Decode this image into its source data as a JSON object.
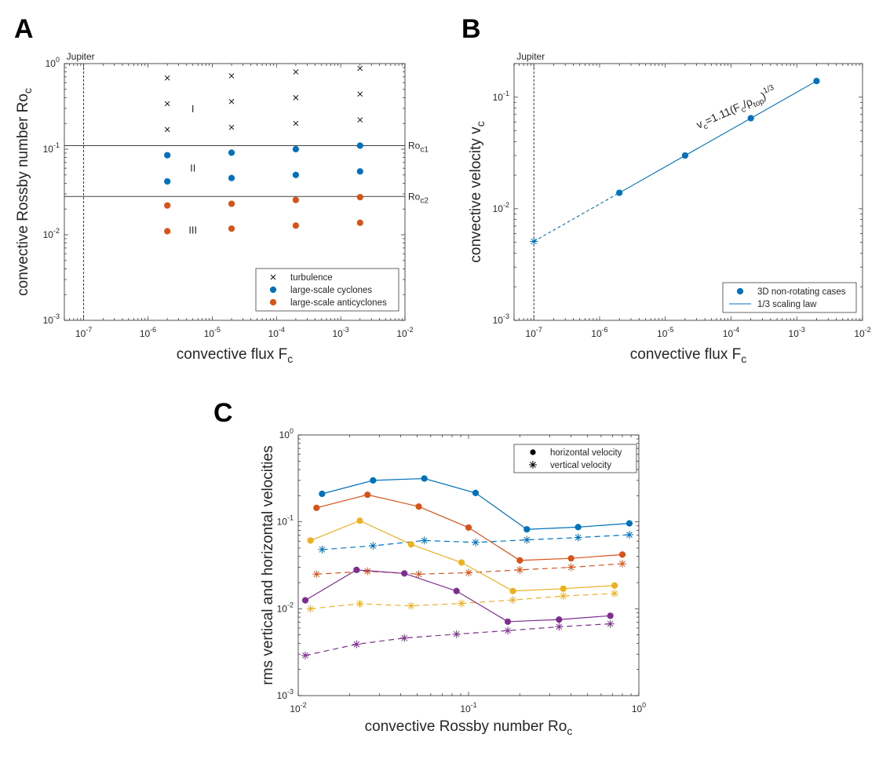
{
  "colors": {
    "blue": "#0072BD",
    "orange": "#D95319",
    "yellow": "#EDB120",
    "purple": "#7E2F8E",
    "axis": "#262626"
  },
  "chart_data": [
    {
      "panel": "A",
      "type": "scatter",
      "title": "",
      "xlabel": "convective flux F",
      "xlabel_sub": "c",
      "ylabel": "convective Rossby number Ro",
      "ylabel_sub": "c",
      "xscale": "log",
      "yscale": "log",
      "xlim": [
        5e-08,
        0.01
      ],
      "ylim": [
        0.001,
        1
      ],
      "x_tick_exponents": [
        -7,
        -6,
        -5,
        -4,
        -3,
        -2
      ],
      "y_tick_exponents": [
        -3,
        -2,
        -1,
        0
      ],
      "vline": {
        "x": 1e-07,
        "label": "Jupiter"
      },
      "hlines": [
        {
          "y": 0.11,
          "label": "Ro",
          "label_sub": "c1"
        },
        {
          "y": 0.028,
          "label": "Ro",
          "label_sub": "c2"
        }
      ],
      "regions": [
        {
          "label": "I",
          "x": 5e-06,
          "y": 0.27
        },
        {
          "label": "II",
          "x": 5e-06,
          "y": 0.055
        },
        {
          "label": "III",
          "x": 5e-06,
          "y": 0.0103
        }
      ],
      "legend": {
        "position": "bottom-right",
        "entries": [
          "turbulence",
          "large-scale cyclones",
          "large-scale anticyclones"
        ]
      },
      "series": [
        {
          "name": "turbulence",
          "marker": "x",
          "x": [
            2e-06,
            2e-06,
            2e-06,
            2e-05,
            2e-05,
            2e-05,
            0.0002,
            0.0002,
            0.0002,
            0.002,
            0.002,
            0.002
          ],
          "y": [
            0.68,
            0.34,
            0.17,
            0.72,
            0.36,
            0.18,
            0.8,
            0.4,
            0.2,
            0.88,
            0.44,
            0.22
          ]
        },
        {
          "name": "large-scale cyclones",
          "marker": "o",
          "color": "blue",
          "x": [
            2e-06,
            2e-06,
            2e-05,
            2e-05,
            0.0002,
            0.0002,
            0.002,
            0.002
          ],
          "y": [
            0.085,
            0.042,
            0.091,
            0.046,
            0.1,
            0.05,
            0.11,
            0.055
          ]
        },
        {
          "name": "large-scale anticyclones",
          "marker": "o",
          "color": "orange",
          "x": [
            2e-06,
            2e-06,
            2e-05,
            2e-05,
            0.0002,
            0.0002,
            0.002,
            0.002
          ],
          "y": [
            0.022,
            0.011,
            0.023,
            0.0118,
            0.0255,
            0.0128,
            0.0275,
            0.0138
          ]
        }
      ]
    },
    {
      "panel": "B",
      "type": "line",
      "title": "",
      "xlabel": "convective flux F",
      "xlabel_sub": "c",
      "ylabel": "convective velocity v",
      "ylabel_sub": "c",
      "xscale": "log",
      "yscale": "log",
      "xlim": [
        5e-08,
        0.01
      ],
      "ylim": [
        0.001,
        0.2
      ],
      "x_tick_exponents": [
        -7,
        -6,
        -5,
        -4,
        -3,
        -2
      ],
      "y_tick_exponents": [
        -3,
        -2,
        -1
      ],
      "vline": {
        "x": 1e-07,
        "label": "Jupiter"
      },
      "annotation": "v_c=1.11(F_c/ρ_top)^1/3",
      "legend": {
        "position": "bottom-right",
        "entries": [
          "3D non-rotating cases",
          "1/3 scaling law"
        ]
      },
      "series": [
        {
          "name": "3D non-rotating cases",
          "marker": "o",
          "color": "blue",
          "x": [
            2e-06,
            2e-05,
            0.0002,
            0.002
          ],
          "y": [
            0.0139,
            0.03,
            0.0648,
            0.1396
          ]
        },
        {
          "name": "1/3 scaling law",
          "color": "blue",
          "style": "solid",
          "x": [
            2e-06,
            0.002
          ],
          "y": [
            0.0139,
            0.1396
          ]
        },
        {
          "name": "extrapolation",
          "color": "blue",
          "style": "dashed",
          "x": [
            1e-07,
            2e-06
          ],
          "y": [
            0.0051,
            0.0139
          ]
        },
        {
          "name": "Jupiter estimate",
          "marker": "*",
          "color": "blue",
          "x": [
            1e-07
          ],
          "y": [
            0.0051
          ]
        }
      ]
    },
    {
      "panel": "C",
      "type": "line",
      "title": "",
      "xlabel": "convective Rossby number Ro",
      "xlabel_sub": "c",
      "ylabel": "rms vertical and horizontal velocities",
      "xscale": "log",
      "yscale": "log",
      "xlim": [
        0.01,
        1
      ],
      "ylim": [
        0.001,
        1
      ],
      "x_tick_exponents": [
        -2,
        -1,
        0
      ],
      "y_tick_exponents": [
        -3,
        -2,
        -1,
        0
      ],
      "legend": {
        "position": "top-right",
        "entries": [
          "horizontal velocity",
          "vertical velocity"
        ]
      },
      "series": [
        {
          "name": "horizontal velocity",
          "color": "blue",
          "marker": "o",
          "style": "solid",
          "x": [
            0.0138,
            0.0275,
            0.055,
            0.11,
            0.22,
            0.44,
            0.88
          ],
          "y": [
            0.21,
            0.3,
            0.315,
            0.215,
            0.082,
            0.087,
            0.096
          ]
        },
        {
          "name": "vertical velocity",
          "color": "blue",
          "marker": "*",
          "style": "dashed",
          "x": [
            0.0138,
            0.0275,
            0.055,
            0.11,
            0.22,
            0.44,
            0.88
          ],
          "y": [
            0.048,
            0.053,
            0.061,
            0.058,
            0.062,
            0.066,
            0.071
          ]
        },
        {
          "name": "horizontal velocity",
          "color": "orange",
          "marker": "o",
          "style": "solid",
          "x": [
            0.0128,
            0.0255,
            0.051,
            0.1,
            0.2,
            0.4,
            0.8
          ],
          "y": [
            0.145,
            0.205,
            0.15,
            0.086,
            0.036,
            0.038,
            0.042
          ]
        },
        {
          "name": "vertical velocity",
          "color": "orange",
          "marker": "*",
          "style": "dashed",
          "x": [
            0.0128,
            0.0255,
            0.051,
            0.1,
            0.2,
            0.4,
            0.8
          ],
          "y": [
            0.025,
            0.027,
            0.025,
            0.026,
            0.028,
            0.03,
            0.033
          ]
        },
        {
          "name": "horizontal velocity",
          "color": "yellow",
          "marker": "o",
          "style": "solid",
          "x": [
            0.0118,
            0.023,
            0.046,
            0.091,
            0.182,
            0.36,
            0.72
          ],
          "y": [
            0.061,
            0.103,
            0.055,
            0.034,
            0.016,
            0.017,
            0.0185
          ]
        },
        {
          "name": "vertical velocity",
          "color": "yellow",
          "marker": "*",
          "style": "dashed",
          "x": [
            0.0118,
            0.023,
            0.046,
            0.091,
            0.182,
            0.36,
            0.72
          ],
          "y": [
            0.01,
            0.0114,
            0.0108,
            0.0115,
            0.0126,
            0.014,
            0.015
          ]
        },
        {
          "name": "horizontal velocity",
          "color": "purple",
          "marker": "o",
          "style": "solid",
          "x": [
            0.011,
            0.022,
            0.042,
            0.085,
            0.17,
            0.34,
            0.68
          ],
          "y": [
            0.0125,
            0.028,
            0.0255,
            0.016,
            0.0071,
            0.0075,
            0.0083
          ]
        },
        {
          "name": "vertical velocity",
          "color": "purple",
          "marker": "*",
          "style": "dashed",
          "x": [
            0.011,
            0.022,
            0.042,
            0.085,
            0.17,
            0.34,
            0.68
          ],
          "y": [
            0.0029,
            0.0039,
            0.0046,
            0.0051,
            0.0056,
            0.0062,
            0.0067
          ]
        }
      ]
    }
  ]
}
